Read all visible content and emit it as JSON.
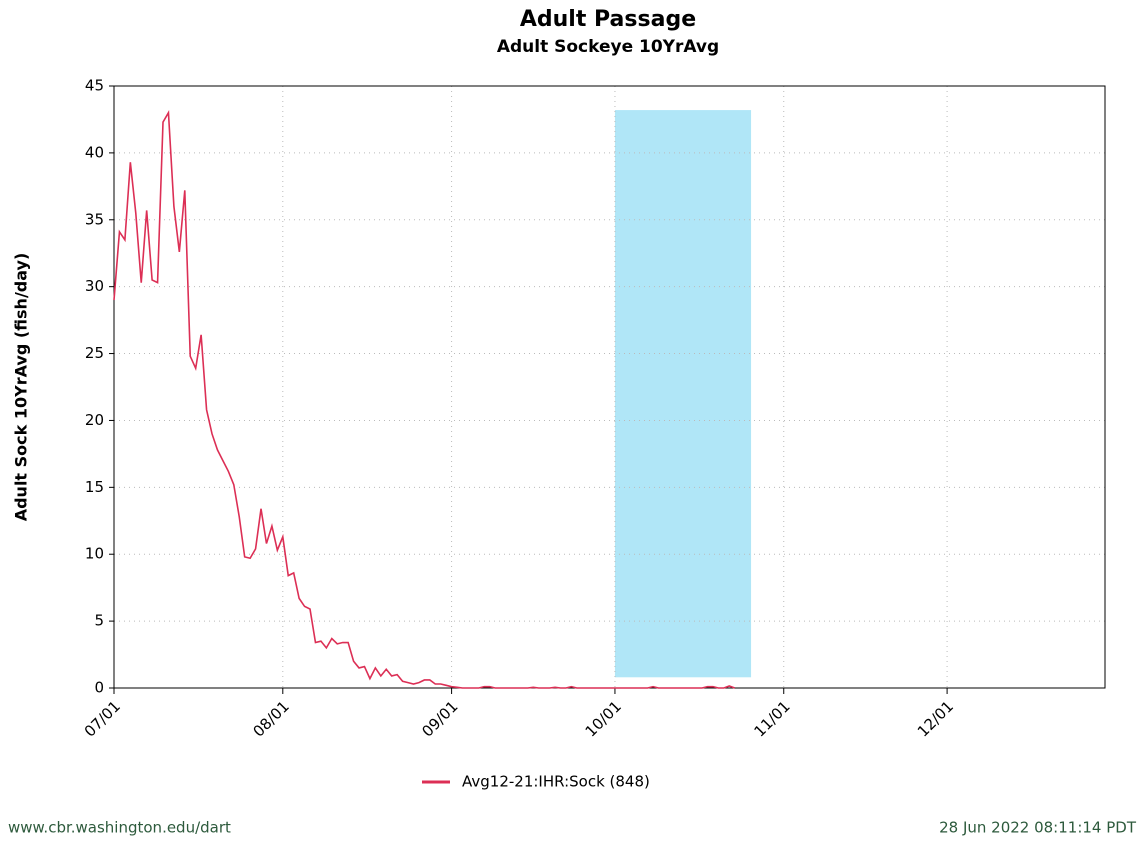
{
  "chart_data": {
    "type": "line",
    "title": "Adult Passage",
    "subtitle": "Adult Sockeye 10YrAvg",
    "y_label": "Adult Sock 10YrAvg (fish/day)",
    "x": [
      "07/01",
      "07/02",
      "07/03",
      "07/04",
      "07/05",
      "07/06",
      "07/07",
      "07/08",
      "07/09",
      "07/10",
      "07/11",
      "07/12",
      "07/13",
      "07/14",
      "07/15",
      "07/16",
      "07/17",
      "07/18",
      "07/19",
      "07/20",
      "07/21",
      "07/22",
      "07/23",
      "07/24",
      "07/25",
      "07/26",
      "07/27",
      "07/28",
      "07/29",
      "07/30",
      "07/31",
      "08/01",
      "08/02",
      "08/03",
      "08/04",
      "08/05",
      "08/06",
      "08/07",
      "08/08",
      "08/09",
      "08/10",
      "08/11",
      "08/12",
      "08/13",
      "08/14",
      "08/15",
      "08/16",
      "08/17",
      "08/18",
      "08/19",
      "08/20",
      "08/21",
      "08/22",
      "08/23",
      "08/24",
      "08/25",
      "08/26",
      "08/27",
      "08/28",
      "08/29",
      "08/30",
      "08/31",
      "09/01",
      "09/02",
      "09/03",
      "09/04",
      "09/05",
      "09/06",
      "09/07",
      "09/08",
      "09/09",
      "09/10",
      "09/11",
      "09/12",
      "09/13",
      "09/14",
      "09/15",
      "09/16",
      "09/17",
      "09/18",
      "09/19",
      "09/20",
      "09/21",
      "09/22",
      "09/23",
      "09/24",
      "09/25",
      "09/26",
      "09/27",
      "09/28",
      "09/29",
      "09/30",
      "10/01",
      "10/02",
      "10/03",
      "10/04",
      "10/05",
      "10/06",
      "10/07",
      "10/08",
      "10/09",
      "10/10",
      "10/11",
      "10/12",
      "10/13",
      "10/14",
      "10/15",
      "10/16",
      "10/17",
      "10/18",
      "10/19",
      "10/20",
      "10/21",
      "10/22",
      "10/23"
    ],
    "series": [
      {
        "name": "Avg12-21:IHR:Sock (848)",
        "color": "#dc2f55",
        "values": [
          29.0,
          34.1,
          33.5,
          39.3,
          35.5,
          30.3,
          35.7,
          30.5,
          30.3,
          42.3,
          43.0,
          36.0,
          32.6,
          37.2,
          24.8,
          23.9,
          26.4,
          20.8,
          19.0,
          17.8,
          17.0,
          16.2,
          15.2,
          12.8,
          9.8,
          9.7,
          10.4,
          13.4,
          10.8,
          12.1,
          10.3,
          11.3,
          8.4,
          8.6,
          6.7,
          6.1,
          5.9,
          3.4,
          3.5,
          3.0,
          3.7,
          3.3,
          3.4,
          3.4,
          2.0,
          1.5,
          1.6,
          0.7,
          1.5,
          0.9,
          1.4,
          0.9,
          1.0,
          0.5,
          0.4,
          0.3,
          0.4,
          0.6,
          0.6,
          0.3,
          0.3,
          0.2,
          0.1,
          0.05,
          0,
          0,
          0,
          0,
          0.1,
          0.1,
          0,
          0,
          0,
          0,
          0,
          0,
          0,
          0.05,
          0,
          0,
          0,
          0.05,
          0,
          0,
          0.1,
          0,
          0,
          0,
          0,
          0,
          0,
          0,
          0,
          0,
          0,
          0,
          0,
          0,
          0,
          0.1,
          0,
          0,
          0,
          0,
          0,
          0,
          0,
          0,
          0,
          0.1,
          0.1,
          0,
          0,
          0.15,
          0
        ]
      }
    ],
    "shaded_region": {
      "x": [
        "10/01",
        "10/26"
      ],
      "y": [
        0.8,
        43.2
      ],
      "color": "#b0e6f7"
    },
    "xlim": [
      "07/01",
      "12/30"
    ],
    "xticks": [
      "07/01",
      "08/01",
      "09/01",
      "10/01",
      "11/01",
      "12/01"
    ],
    "ylim": [
      0,
      45
    ],
    "yticks": [
      0,
      5,
      10,
      15,
      20,
      25,
      30,
      35,
      40,
      45
    ],
    "grid": true,
    "legend": "bottom",
    "footer_left": "www.cbr.washington.edu/dart",
    "footer_right": "28 Jun 2022 08:11:14 PDT"
  }
}
